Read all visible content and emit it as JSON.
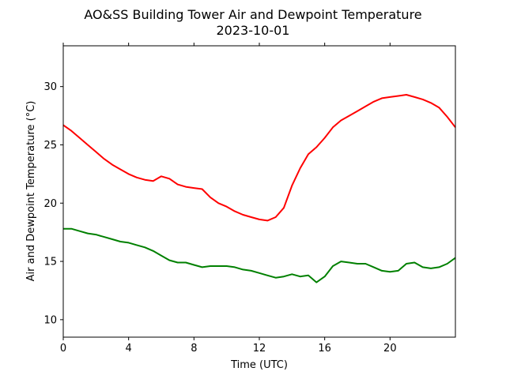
{
  "chart_data": {
    "type": "line",
    "title": "AO&SS Building Tower Air and Dewpoint Temperature",
    "subtitle": "2023-10-01",
    "xlabel": "Time (UTC)",
    "ylabel": "Air and Dewpoint Temperature (°C)",
    "xlim": [
      0,
      24
    ],
    "ylim": [
      8.5,
      33.5
    ],
    "xticks": [
      0,
      4,
      8,
      12,
      16,
      20
    ],
    "yticks": [
      10,
      15,
      20,
      25,
      30
    ],
    "grid": false,
    "legend": "none",
    "x": [
      0,
      0.5,
      1,
      1.5,
      2,
      2.5,
      3,
      3.5,
      4,
      4.5,
      5,
      5.5,
      6,
      6.5,
      7,
      7.5,
      8,
      8.5,
      9,
      9.5,
      10,
      10.5,
      11,
      11.5,
      12,
      12.5,
      13,
      13.5,
      14,
      14.5,
      15,
      15.5,
      16,
      16.5,
      17,
      17.5,
      18,
      18.5,
      19,
      19.5,
      20,
      20.5,
      21,
      21.5,
      22,
      22.5,
      23,
      23.5,
      24
    ],
    "series": [
      {
        "color": "#ff0000",
        "values": [
          26.7,
          26.2,
          25.6,
          25.0,
          24.4,
          23.8,
          23.3,
          22.9,
          22.5,
          22.2,
          22.0,
          21.9,
          22.3,
          22.1,
          21.6,
          21.4,
          21.3,
          21.2,
          20.5,
          20.0,
          19.7,
          19.3,
          19.0,
          18.8,
          18.6,
          18.5,
          18.8,
          19.6,
          21.5,
          23.0,
          24.2,
          24.8,
          25.6,
          26.5,
          27.1,
          27.5,
          27.9,
          28.3,
          28.7,
          29.0,
          29.1,
          29.2,
          29.3,
          29.1,
          28.9,
          28.6,
          28.2,
          27.4,
          26.5
        ]
      },
      {
        "color": "#008000",
        "values": [
          17.8,
          17.8,
          17.6,
          17.4,
          17.3,
          17.1,
          16.9,
          16.7,
          16.6,
          16.4,
          16.2,
          15.9,
          15.5,
          15.1,
          14.9,
          14.9,
          14.7,
          14.5,
          14.6,
          14.6,
          14.6,
          14.5,
          14.3,
          14.2,
          14.0,
          13.8,
          13.6,
          13.7,
          13.9,
          13.7,
          13.8,
          13.2,
          13.7,
          14.6,
          15.0,
          14.9,
          14.8,
          14.8,
          14.5,
          14.2,
          14.1,
          14.2,
          14.8,
          14.9,
          14.5,
          14.4,
          14.5,
          14.8,
          15.3
        ]
      }
    ]
  }
}
